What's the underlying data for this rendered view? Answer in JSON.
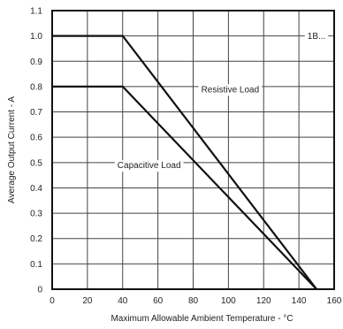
{
  "chart_data": {
    "type": "line",
    "title": "",
    "xlabel": "Maximum Allowable Ambient Temperature - °C",
    "ylabel": "Average Output Current - A",
    "xlim": [
      0,
      160
    ],
    "ylim": [
      0,
      1.1
    ],
    "xticks": [
      "0",
      "20",
      "40",
      "60",
      "80",
      "100",
      "120",
      "140",
      "160"
    ],
    "yticks": [
      "0",
      "0.1",
      "0.2",
      "0.3",
      "0.4",
      "0.5",
      "0.6",
      "0.7",
      "0.8",
      "0.9",
      "1.0",
      "1.1"
    ],
    "grid": true,
    "series": [
      {
        "name": "Resistive Load",
        "x": [
          0,
          40,
          150
        ],
        "y": [
          1.0,
          1.0,
          0
        ]
      },
      {
        "name": "Capacitive Load",
        "x": [
          0,
          40,
          150
        ],
        "y": [
          0.8,
          0.8,
          0
        ]
      }
    ],
    "annotations": [
      {
        "text": "1B...",
        "x": 150,
        "y": 1.0
      },
      {
        "text": "Resistive Load",
        "x": 101,
        "y": 0.79
      },
      {
        "text": "Capacitive Load",
        "x": 55,
        "y": 0.49
      }
    ]
  }
}
